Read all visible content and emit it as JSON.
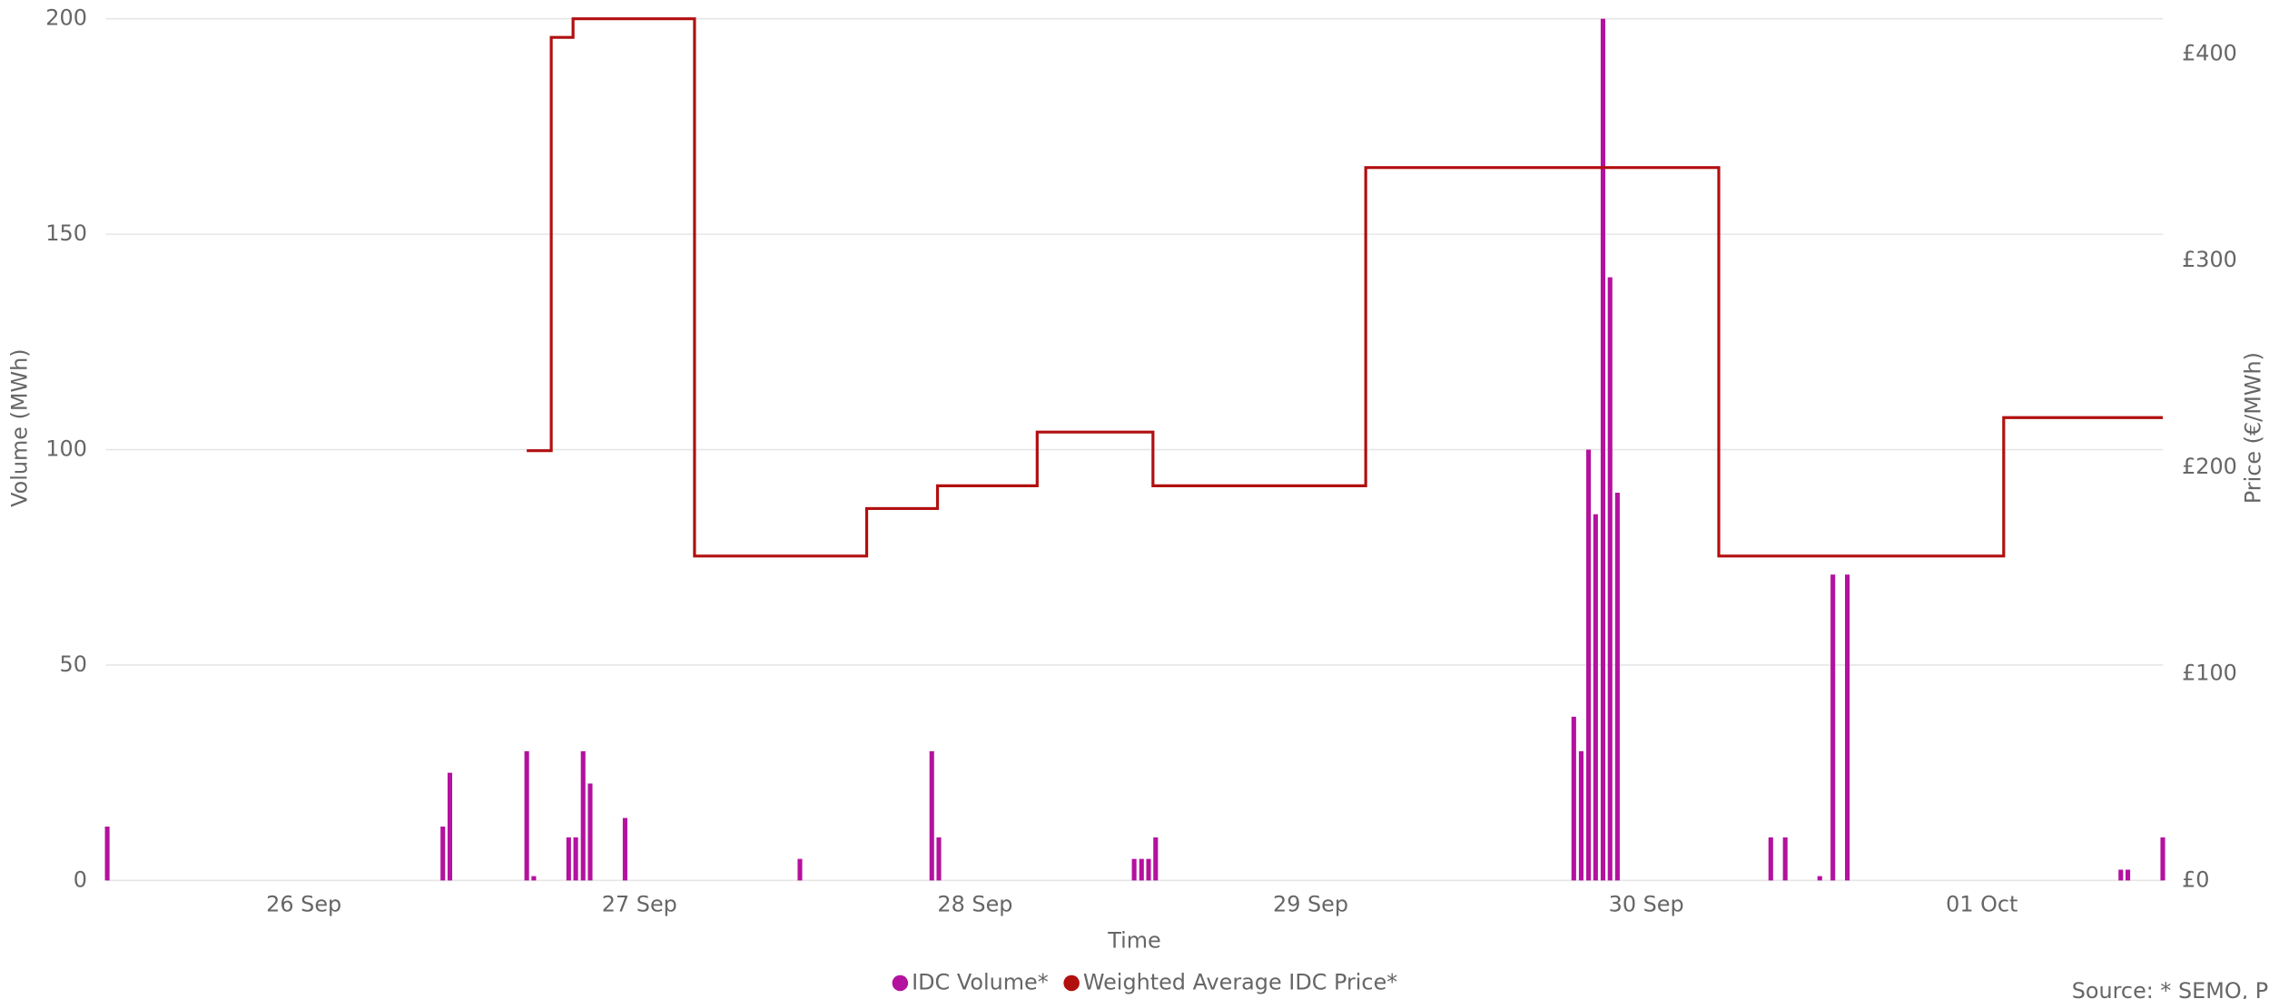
{
  "chart_data": {
    "type": "bar-line",
    "x_label": "Time",
    "y_label": "Volume (MWh)",
    "y2_label": "Price (€/MWh)",
    "source": "Source: * SEMO, PX",
    "xlim": [
      25.41,
      31.54
    ],
    "xticks": [
      {
        "value": 26,
        "label": "26 Sep"
      },
      {
        "value": 27,
        "label": "27 Sep"
      },
      {
        "value": 28,
        "label": "28 Sep"
      },
      {
        "value": 29,
        "label": "29 Sep"
      },
      {
        "value": 30,
        "label": "30 Sep"
      },
      {
        "value": 31,
        "label": "01 Oct"
      }
    ],
    "ylim": [
      0,
      200
    ],
    "yticks": [
      0,
      50,
      100,
      150,
      200
    ],
    "y2lim": [
      0,
      417
    ],
    "y2ticks": [
      {
        "value": 0,
        "label": "£0"
      },
      {
        "value": 100,
        "label": "£100"
      },
      {
        "value": 200,
        "label": "£200"
      },
      {
        "value": 300,
        "label": "£300"
      },
      {
        "value": 400,
        "label": "£400"
      }
    ],
    "grid": true,
    "legend": "bottom",
    "series": [
      {
        "name": "IDC Volume*",
        "type": "bar",
        "color": "#b4119f",
        "x": [
          25.414,
          26.414,
          26.435,
          26.664,
          26.685,
          26.789,
          26.81,
          26.832,
          26.853,
          26.957,
          27.478,
          27.871,
          27.892,
          28.474,
          28.496,
          28.517,
          28.538,
          29.784,
          29.806,
          29.828,
          29.849,
          29.871,
          29.892,
          29.914,
          30.371,
          30.414,
          30.517,
          30.556,
          30.599,
          31.414,
          31.435,
          31.539
        ],
        "values": [
          12.5,
          12.5,
          25,
          30,
          1,
          10,
          10,
          30,
          22.5,
          14.5,
          5,
          30,
          10,
          5,
          5,
          5,
          10,
          38,
          30,
          100,
          85,
          200,
          140,
          90,
          10,
          10,
          1,
          71,
          71,
          2.5,
          2.5,
          10
        ]
      },
      {
        "name": "Weighted Average IDC Price*",
        "type": "step",
        "axis": "y2",
        "color": "#b20f0f",
        "x": [
          26.664,
          26.737,
          26.802,
          27.164,
          27.677,
          27.888,
          28.185,
          28.53,
          29.164,
          30.216,
          31.065,
          31.539
        ],
        "values": [
          208,
          408,
          417,
          157,
          180,
          191,
          217,
          191,
          345,
          157,
          224,
          224
        ]
      }
    ]
  }
}
